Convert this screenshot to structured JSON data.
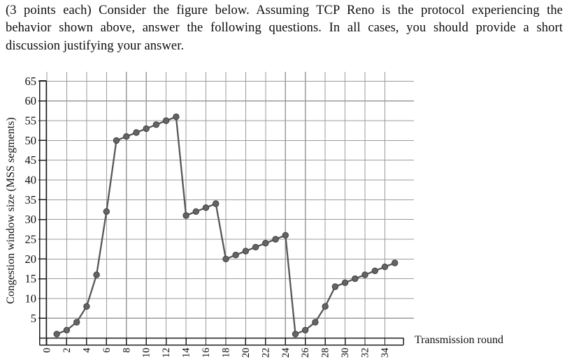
{
  "question": {
    "lines": [
      "(3 points each) Consider the figure below. Assuming TCP Reno is the protocol experiencing the",
      "behavior shown above, answer the following questions. In all cases, you should provide a short",
      "discussion justifying your answer."
    ]
  },
  "chart_data": {
    "type": "line",
    "title": "",
    "xlabel": "Transmission round",
    "ylabel": "Congestion window size (MSS segments)",
    "x": [
      1,
      2,
      3,
      4,
      5,
      6,
      7,
      8,
      9,
      10,
      11,
      12,
      13,
      14,
      15,
      16,
      17,
      18,
      19,
      20,
      21,
      22,
      23,
      24,
      25,
      26,
      27,
      28,
      29,
      30,
      31,
      32,
      33,
      34,
      35
    ],
    "values": [
      1,
      2,
      4,
      8,
      16,
      32,
      50,
      51,
      52,
      53,
      54,
      55,
      56,
      31,
      32,
      33,
      34,
      20,
      21,
      22,
      23,
      24,
      25,
      26,
      1,
      2,
      4,
      8,
      13,
      14,
      15,
      16,
      17,
      18,
      19
    ],
    "x_ticks": [
      0,
      2,
      4,
      6,
      8,
      10,
      12,
      14,
      16,
      18,
      20,
      22,
      24,
      26,
      28,
      30,
      32,
      34
    ],
    "y_ticks": [
      5,
      10,
      15,
      20,
      25,
      30,
      35,
      40,
      45,
      50,
      55,
      60,
      65
    ],
    "xlim": [
      0,
      35
    ],
    "ylim": [
      0,
      65
    ],
    "grid": true,
    "legend": false,
    "marker": "circle",
    "colors": {
      "line": "#575757",
      "point_fill": "#646464",
      "point_edge": "#3d3d3d",
      "grid": "#9b9b9b",
      "axis": "#1c1c1c",
      "text": "#0f0f0f"
    }
  }
}
